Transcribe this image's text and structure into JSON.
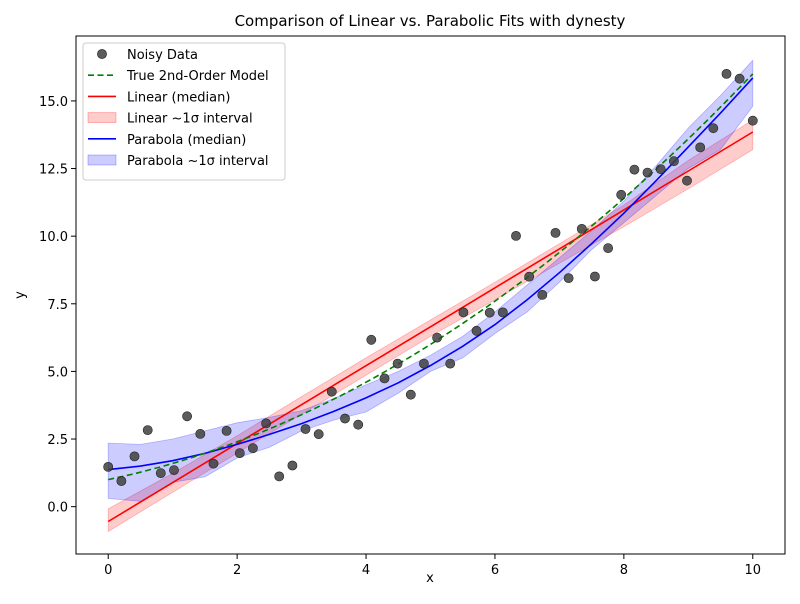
{
  "chart_data": {
    "type": "scatter",
    "title": "Comparison of Linear vs. Parabolic Fits with dynesty",
    "xlabel": "x",
    "ylabel": "y",
    "xlim": [
      -0.5,
      10.5
    ],
    "ylim": [
      -1.75,
      17.4
    ],
    "xticks": [
      0,
      2,
      4,
      6,
      8,
      10
    ],
    "xtick_labels": [
      "0",
      "2",
      "4",
      "6",
      "8",
      "10"
    ],
    "yticks": [
      0.0,
      2.5,
      5.0,
      7.5,
      10.0,
      12.5,
      15.0
    ],
    "ytick_labels": [
      "0.0",
      "2.5",
      "5.0",
      "7.5",
      "10.0",
      "12.5",
      "15.0"
    ],
    "grid": false,
    "legend_position": "upper-left",
    "legend": [
      {
        "label": "Noisy Data",
        "kind": "marker",
        "color": "#404040"
      },
      {
        "label": "True 2nd-Order Model",
        "kind": "dashed",
        "color": "#008000"
      },
      {
        "label": "Linear (median)",
        "kind": "line",
        "color": "#ff0000"
      },
      {
        "label": "Linear ~1σ interval",
        "kind": "band",
        "color": "#ff0000"
      },
      {
        "label": "Parabola (median)",
        "kind": "line",
        "color": "#0000ff"
      },
      {
        "label": "Parabola ~1σ interval",
        "kind": "band",
        "color": "#0000ff"
      }
    ],
    "series": [
      {
        "name": "Noisy Data",
        "kind": "scatter",
        "color": "#404040",
        "x": [
          0.0,
          0.204,
          0.408,
          0.612,
          0.816,
          1.02,
          1.224,
          1.429,
          1.633,
          1.837,
          2.041,
          2.245,
          2.449,
          2.653,
          2.857,
          3.061,
          3.265,
          3.469,
          3.673,
          3.878,
          4.082,
          4.286,
          4.49,
          4.694,
          4.898,
          5.102,
          5.306,
          5.51,
          5.714,
          5.918,
          6.122,
          6.327,
          6.531,
          6.735,
          6.939,
          7.143,
          7.347,
          7.551,
          7.755,
          7.959,
          8.163,
          8.367,
          8.571,
          8.776,
          8.98,
          9.184,
          9.388,
          9.592,
          9.796,
          10.0
        ],
        "y": [
          1.47,
          0.95,
          1.86,
          2.83,
          1.24,
          1.35,
          3.34,
          2.69,
          1.59,
          2.8,
          1.98,
          2.16,
          3.08,
          1.12,
          1.52,
          2.87,
          2.68,
          4.25,
          3.26,
          3.03,
          6.17,
          4.74,
          5.29,
          4.14,
          5.29,
          6.25,
          5.29,
          7.18,
          6.5,
          7.17,
          7.18,
          10.01,
          8.5,
          7.83,
          10.12,
          8.45,
          10.27,
          8.51,
          9.56,
          11.53,
          12.46,
          12.35,
          12.48,
          12.77,
          12.05,
          13.28,
          13.99,
          16.0,
          15.82,
          14.27
        ]
      },
      {
        "name": "True 2nd-Order Model",
        "kind": "curve",
        "color": "#008000",
        "quadratic": [
          1.0,
          0.5,
          0.1
        ]
      },
      {
        "name": "Linear (median)",
        "kind": "curve",
        "color": "#ff0000",
        "linear": [
          -0.55,
          1.44
        ]
      },
      {
        "name": "Linear ~1σ interval",
        "kind": "band",
        "color": "#ff0000",
        "x": [
          0,
          1,
          2,
          3,
          4,
          5,
          6,
          7,
          8,
          9,
          10
        ],
        "lower": [
          -0.92,
          0.53,
          1.98,
          3.42,
          4.86,
          6.3,
          7.65,
          9.0,
          10.35,
          11.75,
          13.2
        ],
        "upper": [
          -0.08,
          1.23,
          2.62,
          4.07,
          5.5,
          6.9,
          8.3,
          9.72,
          11.15,
          12.8,
          14.3
        ]
      },
      {
        "name": "Parabola (median)",
        "kind": "curve",
        "color": "#0000ff",
        "x": [
          0,
          0.5,
          1,
          1.5,
          2,
          2.5,
          3,
          3.5,
          4,
          4.5,
          5,
          5.5,
          6,
          6.5,
          7,
          7.5,
          8,
          8.5,
          9,
          9.5,
          10
        ],
        "y": [
          1.37,
          1.5,
          1.7,
          1.97,
          2.3,
          2.67,
          3.07,
          3.52,
          4.02,
          4.58,
          5.22,
          5.93,
          6.73,
          7.65,
          8.65,
          9.72,
          10.85,
          12.05,
          13.3,
          14.55,
          15.85
        ]
      },
      {
        "name": "Parabola ~1σ interval",
        "kind": "band",
        "color": "#0000ff",
        "x": [
          0,
          0.5,
          1,
          1.5,
          2,
          2.5,
          3,
          3.5,
          4,
          4.5,
          5,
          5.5,
          6,
          6.5,
          7,
          7.5,
          8,
          8.5,
          9,
          9.5,
          10
        ],
        "lower": [
          0.3,
          0.2,
          0.9,
          1.1,
          1.8,
          2.2,
          2.8,
          3.2,
          3.5,
          4.2,
          5.0,
          5.5,
          6.4,
          7.2,
          8.3,
          9.5,
          10.5,
          11.5,
          12.5,
          13.2,
          14.8
        ],
        "upper": [
          2.35,
          2.3,
          2.5,
          2.8,
          3.1,
          3.3,
          3.55,
          4.0,
          4.5,
          5.0,
          5.6,
          6.3,
          7.2,
          8.2,
          9.2,
          10.2,
          11.3,
          12.6,
          14.0,
          15.2,
          16.5
        ]
      }
    ]
  }
}
